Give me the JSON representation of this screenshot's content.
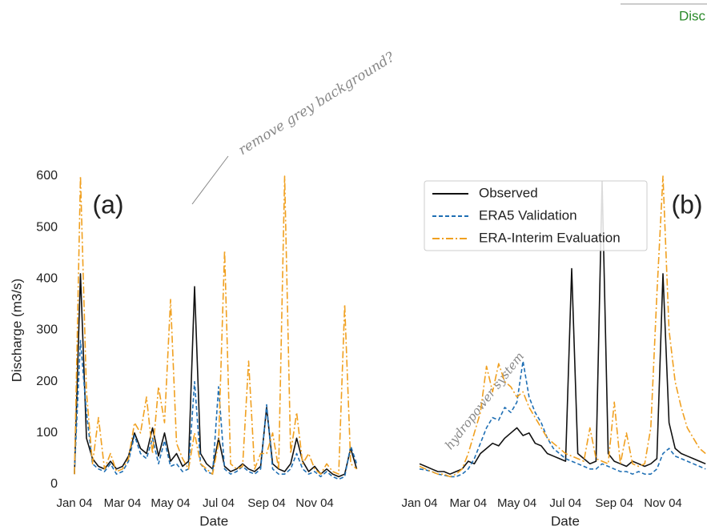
{
  "chart_data": [
    {
      "type": "line",
      "label": "(a)",
      "x_label": "Date",
      "y_label": "Discharge (m3/s)",
      "categories": [
        "Jan 04",
        null,
        null,
        null,
        null,
        null,
        null,
        null,
        "Mar 04",
        null,
        null,
        null,
        null,
        null,
        null,
        null,
        "May 04",
        null,
        null,
        null,
        null,
        null,
        null,
        null,
        "Jul 04",
        null,
        null,
        null,
        null,
        null,
        null,
        null,
        "Sep 04",
        null,
        null,
        null,
        null,
        null,
        null,
        null,
        "Nov 04",
        null,
        null,
        null,
        null,
        null,
        null,
        null
      ],
      "ylim": [
        0,
        600
      ],
      "yticks": [
        0,
        100,
        200,
        300,
        400,
        500,
        600
      ],
      "legend": false,
      "series": [
        {
          "color": "#111111",
          "dash": "solid",
          "values": [
            20,
            410,
            90,
            50,
            35,
            30,
            45,
            30,
            35,
            55,
            100,
            70,
            60,
            110,
            55,
            100,
            45,
            60,
            35,
            45,
            385,
            60,
            40,
            30,
            90,
            35,
            25,
            30,
            40,
            30,
            25,
            35,
            150,
            40,
            30,
            25,
            40,
            90,
            45,
            25,
            35,
            20,
            30,
            20,
            15,
            20,
            70,
            30
          ]
        },
        {
          "color": "#1f6fb4",
          "dash": "dashed",
          "values": [
            25,
            280,
            140,
            40,
            30,
            25,
            40,
            20,
            25,
            45,
            95,
            60,
            50,
            90,
            40,
            85,
            35,
            40,
            25,
            30,
            200,
            40,
            25,
            20,
            190,
            30,
            20,
            25,
            35,
            25,
            20,
            30,
            155,
            30,
            20,
            20,
            30,
            60,
            30,
            20,
            25,
            15,
            25,
            15,
            10,
            15,
            75,
            40
          ]
        },
        {
          "color": "#f0a020",
          "dash": "dashdot",
          "values": [
            20,
            600,
            180,
            40,
            130,
            30,
            60,
            25,
            30,
            50,
            120,
            100,
            170,
            60,
            190,
            120,
            360,
            80,
            50,
            30,
            100,
            40,
            30,
            20,
            80,
            455,
            40,
            30,
            35,
            240,
            30,
            60,
            60,
            100,
            30,
            600,
            60,
            140,
            40,
            60,
            30,
            20,
            40,
            25,
            20,
            350,
            40,
            30
          ]
        }
      ]
    },
    {
      "type": "line",
      "label": "(b)",
      "x_label": "Date",
      "categories": [
        "Jan 04",
        null,
        null,
        null,
        null,
        null,
        null,
        null,
        "Mar 04",
        null,
        null,
        null,
        null,
        null,
        null,
        null,
        "May 04",
        null,
        null,
        null,
        null,
        null,
        null,
        null,
        "Jul 04",
        null,
        null,
        null,
        null,
        null,
        null,
        null,
        "Sep 04",
        null,
        null,
        null,
        null,
        null,
        null,
        null,
        "Nov 04",
        null,
        null,
        null,
        null,
        null,
        null,
        null
      ],
      "ylim": [
        0,
        600
      ],
      "legend": true,
      "series": [
        {
          "name": "Observed",
          "color": "#111111",
          "dash": "solid",
          "values": [
            40,
            35,
            30,
            25,
            25,
            20,
            25,
            30,
            45,
            40,
            60,
            70,
            80,
            75,
            90,
            100,
            110,
            95,
            100,
            80,
            75,
            60,
            55,
            50,
            45,
            420,
            60,
            50,
            40,
            45,
            590,
            60,
            45,
            40,
            35,
            45,
            40,
            35,
            40,
            50,
            410,
            120,
            70,
            60,
            55,
            50,
            45,
            40
          ]
        },
        {
          "name": "ERA5 Validation",
          "color": "#1f6fb4",
          "dash": "dashed",
          "values": [
            30,
            28,
            25,
            20,
            18,
            15,
            15,
            20,
            30,
            50,
            80,
            110,
            130,
            125,
            150,
            140,
            160,
            240,
            170,
            140,
            120,
            90,
            70,
            60,
            50,
            45,
            40,
            35,
            30,
            30,
            40,
            35,
            30,
            25,
            25,
            20,
            25,
            20,
            20,
            30,
            60,
            70,
            55,
            50,
            45,
            40,
            35,
            30
          ]
        },
        {
          "name": "ERA-Interim Evaluation",
          "color": "#f0a020",
          "dash": "dashdot",
          "values": [
            35,
            30,
            25,
            20,
            20,
            15,
            20,
            30,
            60,
            100,
            140,
            230,
            180,
            235,
            200,
            190,
            170,
            180,
            150,
            130,
            110,
            90,
            80,
            70,
            60,
            55,
            50,
            45,
            110,
            50,
            45,
            40,
            160,
            40,
            100,
            40,
            35,
            40,
            110,
            370,
            600,
            300,
            200,
            150,
            110,
            90,
            70,
            60
          ]
        }
      ]
    }
  ],
  "annotations": {
    "note_1": "remove grey background?",
    "note_2": "hydropower system",
    "corner": "Disc"
  }
}
